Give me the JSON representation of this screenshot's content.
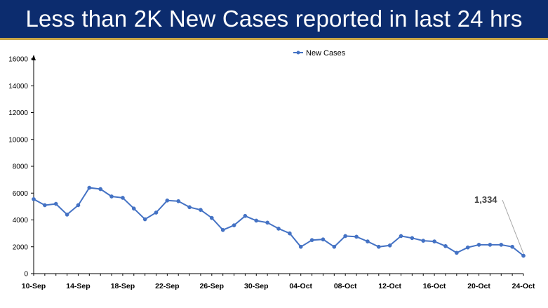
{
  "header": {
    "title": "Less than 2K New Cases reported in last 24 hrs"
  },
  "colors": {
    "banner_bg": "#0c2c6e",
    "banner_accent": "#c8a648",
    "series": "#4472c4"
  },
  "chart_data": {
    "type": "line",
    "title": "",
    "xlabel": "",
    "ylabel": "",
    "ylim": [
      0,
      16000
    ],
    "yticks": [
      0,
      2000,
      4000,
      6000,
      8000,
      10000,
      12000,
      14000,
      16000
    ],
    "x": [
      "10-Sep",
      "11-Sep",
      "12-Sep",
      "13-Sep",
      "14-Sep",
      "15-Sep",
      "16-Sep",
      "17-Sep",
      "18-Sep",
      "19-Sep",
      "20-Sep",
      "21-Sep",
      "22-Sep",
      "23-Sep",
      "24-Sep",
      "25-Sep",
      "26-Sep",
      "27-Sep",
      "28-Sep",
      "29-Sep",
      "30-Sep",
      "01-Oct",
      "02-Oct",
      "03-Oct",
      "04-Oct",
      "05-Oct",
      "06-Oct",
      "07-Oct",
      "08-Oct",
      "09-Oct",
      "10-Oct",
      "11-Oct",
      "12-Oct",
      "13-Oct",
      "14-Oct",
      "15-Oct",
      "16-Oct",
      "17-Oct",
      "18-Oct",
      "19-Oct",
      "20-Oct",
      "21-Oct",
      "22-Oct",
      "23-Oct",
      "24-Oct"
    ],
    "xtick_labels": [
      "10-Sep",
      "14-Sep",
      "18-Sep",
      "22-Sep",
      "26-Sep",
      "30-Sep",
      "04-Oct",
      "08-Oct",
      "12-Oct",
      "16-Oct",
      "20-Oct",
      "24-Oct"
    ],
    "series": [
      {
        "name": "New Cases",
        "values": [
          5550,
          5100,
          5200,
          4400,
          5100,
          6400,
          6300,
          5750,
          5650,
          4850,
          4050,
          4550,
          5450,
          5400,
          4950,
          4750,
          4150,
          3250,
          3600,
          4300,
          3950,
          3800,
          3350,
          3000,
          2000,
          2500,
          2550,
          2000,
          2800,
          2750,
          2400,
          2000,
          2100,
          2800,
          2650,
          2450,
          2400,
          2050,
          1550,
          1950,
          2150,
          2150,
          2150,
          2000,
          1334
        ]
      }
    ],
    "legend": {
      "position": "top-center",
      "labels": [
        "New Cases"
      ]
    },
    "grid": false,
    "annotations": [
      {
        "x": "24-Oct",
        "text": "1,334"
      }
    ]
  }
}
